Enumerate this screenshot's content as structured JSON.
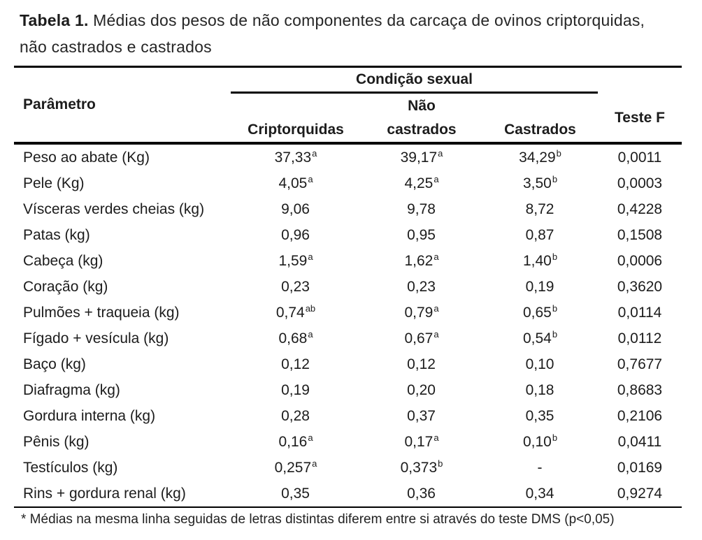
{
  "title": {
    "label": "Tabela 1.",
    "line1": "Médias dos pesos de não componentes da carcaça de ovinos criptorquidas,",
    "line2": "não castrados e castrados"
  },
  "table": {
    "header": {
      "parametro": "Parâmetro",
      "group": "Condição sexual",
      "criptorquidas": "Criptorquidas",
      "nao_castrados_line1": "Não",
      "nao_castrados_line2": "castrados",
      "castrados": "Castrados",
      "teste_f": "Teste F"
    },
    "rows": [
      {
        "param": "Peso ao abate (Kg)",
        "c1": {
          "v": "37,33",
          "s": "a"
        },
        "c2": {
          "v": "39,17",
          "s": "a"
        },
        "c3": {
          "v": "34,29",
          "s": "b"
        },
        "f": "0,0011"
      },
      {
        "param": "Pele (Kg)",
        "c1": {
          "v": "4,05",
          "s": "a"
        },
        "c2": {
          "v": "4,25",
          "s": "a"
        },
        "c3": {
          "v": "3,50",
          "s": "b"
        },
        "f": "0,0003"
      },
      {
        "param": "Vísceras verdes cheias (kg)",
        "c1": {
          "v": "9,06",
          "s": ""
        },
        "c2": {
          "v": "9,78",
          "s": ""
        },
        "c3": {
          "v": "8,72",
          "s": ""
        },
        "f": "0,4228"
      },
      {
        "param": "Patas (kg)",
        "c1": {
          "v": "0,96",
          "s": ""
        },
        "c2": {
          "v": "0,95",
          "s": ""
        },
        "c3": {
          "v": "0,87",
          "s": ""
        },
        "f": "0,1508"
      },
      {
        "param": "Cabeça (kg)",
        "c1": {
          "v": "1,59",
          "s": "a"
        },
        "c2": {
          "v": "1,62",
          "s": "a"
        },
        "c3": {
          "v": "1,40",
          "s": "b"
        },
        "f": "0,0006"
      },
      {
        "param": "Coração (kg)",
        "c1": {
          "v": "0,23",
          "s": ""
        },
        "c2": {
          "v": "0,23",
          "s": ""
        },
        "c3": {
          "v": "0,19",
          "s": ""
        },
        "f": "0,3620"
      },
      {
        "param": "Pulmões + traqueia (kg)",
        "c1": {
          "v": "0,74",
          "s": "ab"
        },
        "c2": {
          "v": "0,79",
          "s": "a"
        },
        "c3": {
          "v": "0,65",
          "s": "b"
        },
        "f": "0,0114"
      },
      {
        "param": "Fígado + vesícula (kg)",
        "c1": {
          "v": "0,68",
          "s": "a"
        },
        "c2": {
          "v": "0,67",
          "s": "a"
        },
        "c3": {
          "v": "0,54",
          "s": "b"
        },
        "f": "0,0112"
      },
      {
        "param": "Baço (kg)",
        "c1": {
          "v": "0,12",
          "s": ""
        },
        "c2": {
          "v": "0,12",
          "s": ""
        },
        "c3": {
          "v": "0,10",
          "s": ""
        },
        "f": "0,7677"
      },
      {
        "param": "Diafragma (kg)",
        "c1": {
          "v": "0,19",
          "s": ""
        },
        "c2": {
          "v": "0,20",
          "s": ""
        },
        "c3": {
          "v": "0,18",
          "s": ""
        },
        "f": "0,8683"
      },
      {
        "param": "Gordura interna (kg)",
        "c1": {
          "v": "0,28",
          "s": ""
        },
        "c2": {
          "v": "0,37",
          "s": ""
        },
        "c3": {
          "v": "0,35",
          "s": ""
        },
        "f": "0,2106"
      },
      {
        "param": "Pênis (kg)",
        "c1": {
          "v": "0,16",
          "s": "a"
        },
        "c2": {
          "v": "0,17",
          "s": "a"
        },
        "c3": {
          "v": "0,10",
          "s": "b"
        },
        "f": "0,0411"
      },
      {
        "param": "Testículos (kg)",
        "c1": {
          "v": "0,257",
          "s": "a"
        },
        "c2": {
          "v": "0,373",
          "s": "b"
        },
        "c3": {
          "v": "-",
          "s": ""
        },
        "f": "0,0169"
      },
      {
        "param": "Rins + gordura renal (kg)",
        "c1": {
          "v": "0,35",
          "s": ""
        },
        "c2": {
          "v": "0,36",
          "s": ""
        },
        "c3": {
          "v": "0,34",
          "s": ""
        },
        "f": "0,9274"
      }
    ]
  },
  "footnote": "* Médias na mesma linha seguidas de letras distintas diferem entre si através do teste DMS (p<0,05)"
}
